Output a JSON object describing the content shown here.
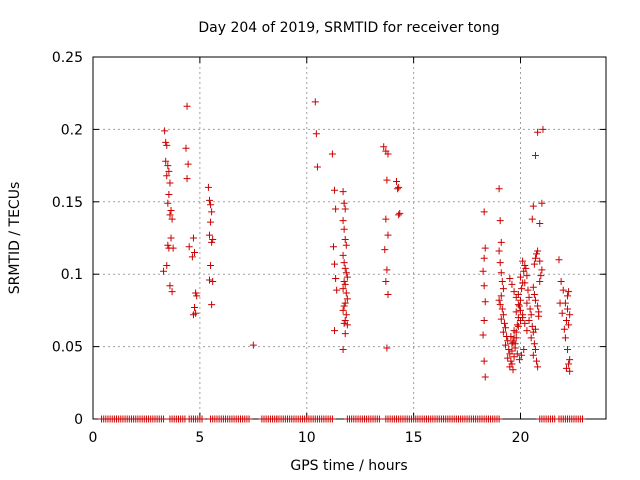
{
  "chart_data": {
    "type": "scatter",
    "title": "Day 204 of 2019, SRMTID for receiver tong",
    "xlabel": "GPS time / hours",
    "ylabel": "SRMTID / TECUs",
    "xlim": [
      0,
      24
    ],
    "ylim": [
      0,
      0.25
    ],
    "xticks": [
      0,
      5,
      10,
      15,
      20
    ],
    "xtick_labels": [
      "0",
      "5",
      "10",
      "15",
      "20"
    ],
    "yticks": [
      0,
      0.05,
      0.1,
      0.15,
      0.2,
      0.25
    ],
    "ytick_labels": [
      "0",
      "0.05",
      "0.1",
      "0.15",
      "0.2",
      "0.25"
    ],
    "grid": true,
    "marker": "+",
    "series": [
      {
        "name": "SRMTID",
        "color": "#cc0000",
        "x": [
          3.35,
          3.4,
          3.45,
          3.4,
          3.5,
          3.55,
          3.45,
          3.6,
          3.55,
          3.5,
          3.65,
          3.6,
          3.7,
          3.65,
          3.5,
          3.55,
          3.45,
          3.6,
          3.7,
          3.75,
          3.3,
          4.4,
          4.35,
          4.45,
          4.4,
          4.5,
          4.7,
          4.75,
          4.65,
          4.8,
          4.85,
          4.75,
          4.8,
          4.7,
          5.4,
          5.45,
          5.5,
          5.55,
          5.5,
          5.45,
          5.6,
          5.55,
          5.5,
          5.45,
          5.6,
          5.55,
          7.5,
          10.4,
          10.45,
          10.5,
          11.2,
          11.3,
          11.35,
          11.25,
          11.3,
          11.35,
          11.4,
          11.3,
          11.7,
          11.75,
          11.8,
          11.7,
          11.75,
          11.8,
          11.85,
          11.7,
          11.75,
          11.8,
          11.85,
          11.9,
          11.75,
          11.8,
          11.7,
          11.85,
          11.9,
          11.8,
          11.75,
          11.7,
          11.85,
          11.8,
          11.75,
          11.9,
          11.8,
          11.7,
          13.6,
          13.7,
          13.8,
          13.75,
          13.7,
          13.8,
          13.65,
          13.75,
          13.7,
          13.8,
          13.75,
          14.2,
          14.3,
          14.25,
          14.35,
          14.3,
          18.3,
          18.35,
          18.3,
          18.25,
          18.3,
          18.35,
          18.3,
          18.25,
          18.3,
          18.35,
          19.0,
          19.05,
          19.1,
          19.0,
          19.05,
          19.1,
          19.15,
          19.2,
          19.1,
          19.0,
          19.05,
          19.15,
          19.2,
          19.1,
          19.25,
          19.3,
          19.2,
          19.35,
          19.4,
          19.3,
          19.45,
          19.5,
          19.4,
          19.55,
          19.6,
          19.5,
          19.65,
          19.7,
          19.6,
          19.75,
          19.8,
          19.7,
          19.85,
          19.9,
          19.8,
          19.95,
          20.0,
          19.9,
          20.05,
          20.1,
          20.0,
          20.15,
          20.2,
          20.1,
          20.25,
          20.3,
          20.2,
          20.35,
          20.4,
          20.3,
          20.45,
          20.5,
          20.4,
          20.55,
          20.6,
          20.5,
          20.65,
          20.7,
          20.6,
          20.75,
          20.8,
          20.7,
          20.85,
          19.5,
          19.6,
          19.7,
          19.8,
          19.9,
          20.0,
          20.1,
          20.2,
          20.3,
          19.55,
          19.65,
          19.75,
          19.85,
          19.95,
          20.05,
          20.15,
          19.6,
          19.7,
          19.8,
          19.9,
          20.0,
          20.1,
          20.6,
          20.65,
          20.7,
          20.8,
          20.85,
          20.9,
          20.95,
          21.0,
          20.9,
          20.8,
          20.75,
          20.7,
          20.65,
          20.6,
          20.55,
          20.7,
          20.8,
          20.9,
          21.0,
          21.05,
          21.8,
          21.9,
          22.0,
          22.1,
          22.2,
          22.3,
          22.15,
          22.25,
          22.1,
          22.2,
          22.3,
          22.25,
          22.15,
          22.05,
          21.95,
          21.85,
          22.2,
          22.25,
          22.3
        ],
        "y": [
          0.199,
          0.191,
          0.189,
          0.178,
          0.175,
          0.171,
          0.168,
          0.163,
          0.155,
          0.149,
          0.144,
          0.141,
          0.138,
          0.125,
          0.12,
          0.118,
          0.106,
          0.092,
          0.088,
          0.118,
          0.102,
          0.216,
          0.187,
          0.176,
          0.166,
          0.119,
          0.125,
          0.115,
          0.112,
          0.087,
          0.085,
          0.077,
          0.073,
          0.072,
          0.16,
          0.151,
          0.148,
          0.143,
          0.136,
          0.127,
          0.124,
          0.122,
          0.106,
          0.096,
          0.095,
          0.079,
          0.051,
          0.219,
          0.197,
          0.174,
          0.183,
          0.158,
          0.145,
          0.119,
          0.107,
          0.097,
          0.089,
          0.061,
          0.157,
          0.149,
          0.145,
          0.137,
          0.131,
          0.124,
          0.12,
          0.113,
          0.108,
          0.104,
          0.101,
          0.098,
          0.095,
          0.093,
          0.09,
          0.087,
          0.083,
          0.08,
          0.078,
          0.075,
          0.072,
          0.068,
          0.066,
          0.065,
          0.059,
          0.048,
          0.188,
          0.185,
          0.183,
          0.165,
          0.138,
          0.127,
          0.117,
          0.103,
          0.095,
          0.086,
          0.049,
          0.164,
          0.16,
          0.159,
          0.142,
          0.141,
          0.143,
          0.118,
          0.111,
          0.102,
          0.092,
          0.081,
          0.068,
          0.058,
          0.04,
          0.029,
          0.159,
          0.137,
          0.122,
          0.116,
          0.108,
          0.101,
          0.095,
          0.09,
          0.085,
          0.082,
          0.079,
          0.076,
          0.072,
          0.069,
          0.066,
          0.063,
          0.06,
          0.057,
          0.054,
          0.051,
          0.048,
          0.045,
          0.042,
          0.04,
          0.038,
          0.036,
          0.034,
          0.043,
          0.047,
          0.052,
          0.056,
          0.061,
          0.065,
          0.07,
          0.074,
          0.078,
          0.082,
          0.086,
          0.09,
          0.094,
          0.098,
          0.102,
          0.106,
          0.109,
          0.104,
          0.099,
          0.094,
          0.089,
          0.084,
          0.08,
          0.076,
          0.072,
          0.068,
          0.064,
          0.06,
          0.056,
          0.052,
          0.048,
          0.044,
          0.04,
          0.036,
          0.062,
          0.071,
          0.097,
          0.093,
          0.088,
          0.084,
          0.079,
          0.075,
          0.07,
          0.066,
          0.061,
          0.057,
          0.053,
          0.049,
          0.045,
          0.041,
          0.044,
          0.048,
          0.052,
          0.056,
          0.06,
          0.064,
          0.068,
          0.072,
          0.091,
          0.086,
          0.082,
          0.078,
          0.074,
          0.095,
          0.099,
          0.103,
          0.109,
          0.116,
          0.114,
          0.111,
          0.107,
          0.147,
          0.138,
          0.182,
          0.198,
          0.135,
          0.149,
          0.2,
          0.11,
          0.095,
          0.089,
          0.08,
          0.076,
          0.072,
          0.068,
          0.065,
          0.056,
          0.048,
          0.041,
          0.038,
          0.035,
          0.062,
          0.073,
          0.08,
          0.085,
          0.088,
          0.033
        ]
      },
      {
        "name": "zero-level",
        "color": "#cc0000",
        "x_ranges": [
          [
            0.4,
            3.3
          ],
          [
            3.6,
            4.3
          ],
          [
            4.5,
            5.1
          ],
          [
            5.5,
            7.3
          ],
          [
            7.9,
            8.6
          ],
          [
            8.6,
            11.2
          ],
          [
            11.9,
            13.4
          ],
          [
            13.7,
            19.0
          ],
          [
            20.9,
            21.6
          ],
          [
            21.8,
            22.9
          ]
        ],
        "y": 0,
        "spacing_hours": 0.1
      }
    ]
  }
}
